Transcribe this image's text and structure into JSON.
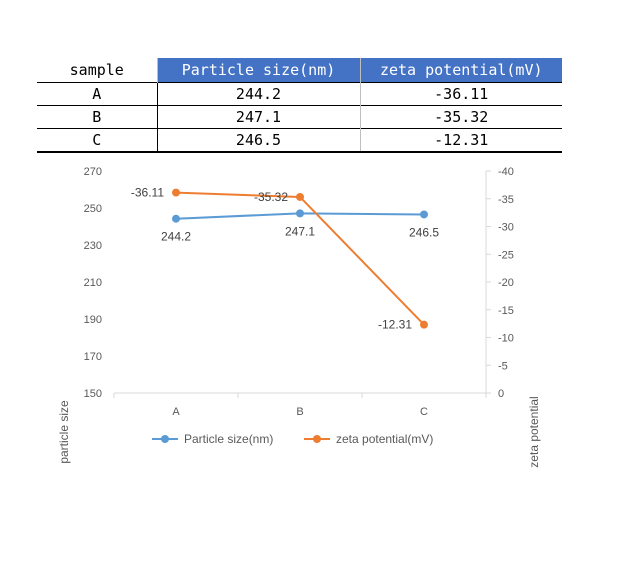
{
  "table": {
    "headers": [
      "sample",
      "Particle size(nm)",
      "zeta potential(mV)"
    ],
    "rows": [
      {
        "sample": "A",
        "size": "244.2",
        "zeta": "-36.11"
      },
      {
        "sample": "B",
        "size": "247.1",
        "zeta": "-35.32"
      },
      {
        "sample": "C",
        "size": "246.5",
        "zeta": "-12.31"
      }
    ]
  },
  "chart_data": {
    "type": "line",
    "categories": [
      "A",
      "B",
      "C"
    ],
    "series": [
      {
        "name": "Particle size(nm)",
        "values": [
          244.2,
          247.1,
          246.5
        ],
        "labels": [
          "244.2",
          "247.1",
          "246.5"
        ],
        "axis": "left",
        "color": "#5b9bd5"
      },
      {
        "name": "zeta potential(mV)",
        "values": [
          -36.11,
          -35.32,
          -12.31
        ],
        "labels": [
          "-36.11",
          "-35.32",
          "-12.31"
        ],
        "axis": "right",
        "color": "#ed7d31"
      }
    ],
    "ylabel": "particle size",
    "y2label": "zeta potential",
    "ylim": [
      150,
      270
    ],
    "yticks": [
      "150",
      "170",
      "190",
      "210",
      "230",
      "250",
      "270"
    ],
    "y2lim": [
      0,
      -40
    ],
    "y2ticks": [
      "0",
      "-5",
      "-10",
      "-15",
      "-20",
      "-25",
      "-30",
      "-35",
      "-40"
    ],
    "y2_reversed": true,
    "grid": false,
    "legend": "bottom"
  }
}
